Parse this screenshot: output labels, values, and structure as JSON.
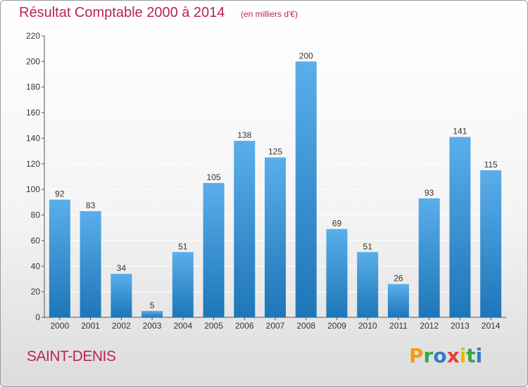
{
  "header": {
    "title": "Résultat Comptable 2000 à 2014",
    "subtitle": "(en milliers d'€)"
  },
  "footer": {
    "location": "SAINT-DENIS"
  },
  "brand": {
    "logo_text": "Proxiti",
    "letters": [
      {
        "ch": "P",
        "color": "#f39c12"
      },
      {
        "ch": "r",
        "color": "#3aa64a"
      },
      {
        "ch": "o",
        "color": "#2e7dc6"
      },
      {
        "ch": "x",
        "color": "#e8403a"
      },
      {
        "ch": "i",
        "color": "#f2b705"
      },
      {
        "ch": "t",
        "color": "#3aa64a"
      },
      {
        "ch": "i",
        "color": "#2e7dc6"
      }
    ]
  },
  "colors": {
    "accent": "#b8254f",
    "bar_top": "#5aaeea",
    "bar_bottom": "#1d76b8",
    "grid": "#ffffff",
    "axis": "#555555"
  },
  "chart_data": {
    "type": "bar",
    "categories": [
      "2000",
      "2001",
      "2002",
      "2003",
      "2004",
      "2005",
      "2006",
      "2007",
      "2008",
      "2009",
      "2010",
      "2011",
      "2012",
      "2013",
      "2014"
    ],
    "values": [
      92,
      83,
      34,
      5,
      51,
      105,
      138,
      125,
      200,
      69,
      51,
      26,
      93,
      141,
      115
    ],
    "ylim": [
      0,
      220
    ],
    "yticks": [
      0,
      20,
      40,
      60,
      80,
      100,
      120,
      140,
      160,
      180,
      200,
      220
    ],
    "grid": true,
    "xlabel": "",
    "ylabel": ""
  }
}
